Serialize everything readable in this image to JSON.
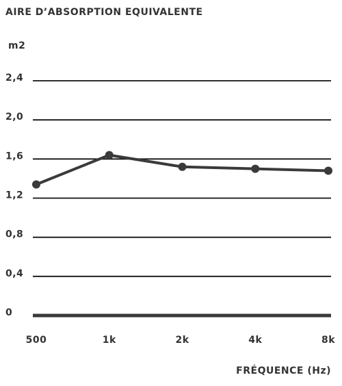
{
  "chart_data": {
    "type": "line",
    "title": "AIRE D’ABSORPTION EQUIVALENTE",
    "y_label": "m2",
    "x_label": "FRÉQUENCE (Hz)",
    "categories": [
      "500",
      "1k",
      "2k",
      "4k",
      "8k"
    ],
    "values": [
      1.34,
      1.64,
      1.52,
      1.5,
      1.48
    ],
    "color": "#3a3a3a",
    "ylim": [
      0,
      2.4
    ],
    "yticks": [
      0,
      {
        "value": 0.4,
        "label": "0,4"
      },
      {
        "value": 0.8,
        "label": "0,8"
      },
      {
        "value": 1.2,
        "label": "1,2"
      },
      {
        "value": 1.6,
        "label": "1,6"
      },
      {
        "value": 2.0,
        "label": "2,0"
      },
      {
        "value": 2.4,
        "label": "2,4"
      }
    ],
    "grid": true
  }
}
